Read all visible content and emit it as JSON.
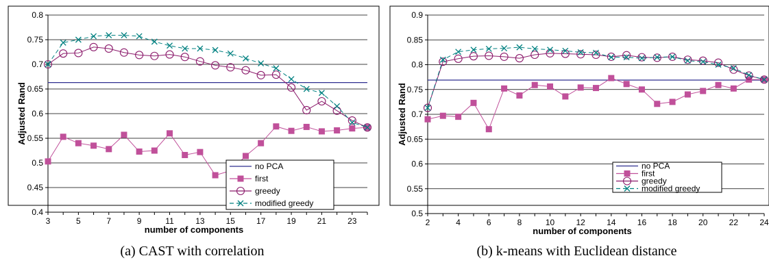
{
  "chart_data": [
    {
      "type": "line",
      "caption": "(a) CAST with correlation",
      "xlabel": "number of components",
      "ylabel": "Adjusted Rand",
      "xlim": [
        3,
        24
      ],
      "ylim": [
        0.4,
        0.8
      ],
      "x_ticks": [
        "3",
        "5",
        "7",
        "9",
        "11",
        "13",
        "15",
        "17",
        "19",
        "21",
        "23"
      ],
      "y_ticks": [
        "0.4",
        "0.45",
        "0.5",
        "0.55",
        "0.6",
        "0.65",
        "0.7",
        "0.75",
        "0.8"
      ],
      "legend": "bottom-right",
      "series": [
        {
          "name": "no PCA",
          "color": "#2e2e8f",
          "marker": "none",
          "dash": false,
          "x": [
            3,
            24
          ],
          "values": [
            0.663,
            0.663
          ]
        },
        {
          "name": "first",
          "color": "#c0509a",
          "marker": "square",
          "dash": false,
          "x": [
            3,
            4,
            5,
            6,
            7,
            8,
            9,
            10,
            11,
            12,
            13,
            14,
            15,
            16,
            17,
            18,
            19,
            20,
            21,
            22,
            23,
            24
          ],
          "values": [
            0.503,
            0.553,
            0.54,
            0.535,
            0.528,
            0.557,
            0.523,
            0.525,
            0.56,
            0.516,
            0.522,
            0.475,
            0.484,
            0.514,
            0.54,
            0.574,
            0.565,
            0.573,
            0.564,
            0.566,
            0.57,
            0.572
          ]
        },
        {
          "name": "greedy",
          "color": "#8b1a6b",
          "marker": "circle",
          "dash": false,
          "x": [
            3,
            4,
            5,
            6,
            7,
            8,
            9,
            10,
            11,
            12,
            13,
            14,
            15,
            16,
            17,
            18,
            19,
            20,
            21,
            22,
            23,
            24
          ],
          "values": [
            0.7,
            0.722,
            0.723,
            0.735,
            0.732,
            0.724,
            0.719,
            0.717,
            0.72,
            0.715,
            0.706,
            0.698,
            0.694,
            0.688,
            0.678,
            0.679,
            0.653,
            0.607,
            0.625,
            0.606,
            0.586,
            0.572
          ]
        },
        {
          "name": "modified greedy",
          "color": "#008080",
          "marker": "x",
          "dash": true,
          "x": [
            3,
            4,
            5,
            6,
            7,
            8,
            9,
            10,
            11,
            12,
            13,
            14,
            15,
            16,
            17,
            18,
            19,
            20,
            21,
            22,
            23,
            24
          ],
          "values": [
            0.7,
            0.744,
            0.75,
            0.757,
            0.759,
            0.759,
            0.757,
            0.746,
            0.738,
            0.732,
            0.732,
            0.729,
            0.722,
            0.712,
            0.702,
            0.692,
            0.67,
            0.65,
            0.642,
            0.615,
            0.582,
            0.572
          ]
        }
      ]
    },
    {
      "type": "line",
      "caption": "(b) k-means with Euclidean distance",
      "xlabel": "number of components",
      "ylabel": "Adjusted Rand",
      "xlim": [
        2,
        24
      ],
      "ylim": [
        0.5,
        0.9
      ],
      "x_ticks": [
        "2",
        "4",
        "6",
        "8",
        "10",
        "12",
        "14",
        "16",
        "18",
        "20",
        "22",
        "24"
      ],
      "y_ticks": [
        "0.5",
        "0.55",
        "0.6",
        "0.65",
        "0.7",
        "0.75",
        "0.8",
        "0.85",
        "0.9"
      ],
      "legend": "bottom-right",
      "series": [
        {
          "name": "no PCA",
          "color": "#2e2e8f",
          "marker": "none",
          "dash": false,
          "x": [
            2,
            24
          ],
          "values": [
            0.769,
            0.769
          ]
        },
        {
          "name": "first",
          "color": "#c0509a",
          "marker": "square",
          "dash": false,
          "x": [
            2,
            3,
            4,
            5,
            6,
            7,
            8,
            9,
            10,
            11,
            12,
            13,
            14,
            15,
            16,
            17,
            18,
            19,
            20,
            21,
            22,
            23,
            24
          ],
          "values": [
            0.69,
            0.697,
            0.695,
            0.723,
            0.67,
            0.752,
            0.738,
            0.759,
            0.756,
            0.736,
            0.754,
            0.753,
            0.773,
            0.761,
            0.75,
            0.721,
            0.725,
            0.74,
            0.747,
            0.759,
            0.752,
            0.77,
            0.77
          ]
        },
        {
          "name": "greedy",
          "color": "#8b1a6b",
          "marker": "circle",
          "dash": false,
          "x": [
            2,
            3,
            4,
            5,
            6,
            7,
            8,
            9,
            10,
            11,
            12,
            13,
            14,
            15,
            16,
            17,
            18,
            19,
            20,
            21,
            22,
            23,
            24
          ],
          "values": [
            0.713,
            0.806,
            0.812,
            0.817,
            0.818,
            0.816,
            0.813,
            0.82,
            0.823,
            0.822,
            0.821,
            0.82,
            0.816,
            0.819,
            0.815,
            0.814,
            0.816,
            0.81,
            0.808,
            0.804,
            0.79,
            0.778,
            0.77
          ]
        },
        {
          "name": "modified greedy",
          "color": "#008080",
          "marker": "x",
          "dash": true,
          "x": [
            2,
            3,
            4,
            5,
            6,
            7,
            8,
            9,
            10,
            11,
            12,
            13,
            14,
            15,
            16,
            17,
            18,
            19,
            20,
            21,
            22,
            23,
            24
          ],
          "values": [
            0.713,
            0.81,
            0.826,
            0.83,
            0.832,
            0.833,
            0.835,
            0.832,
            0.83,
            0.828,
            0.825,
            0.824,
            0.815,
            0.815,
            0.813,
            0.815,
            0.816,
            0.808,
            0.806,
            0.8,
            0.793,
            0.779,
            0.77
          ]
        }
      ]
    }
  ]
}
